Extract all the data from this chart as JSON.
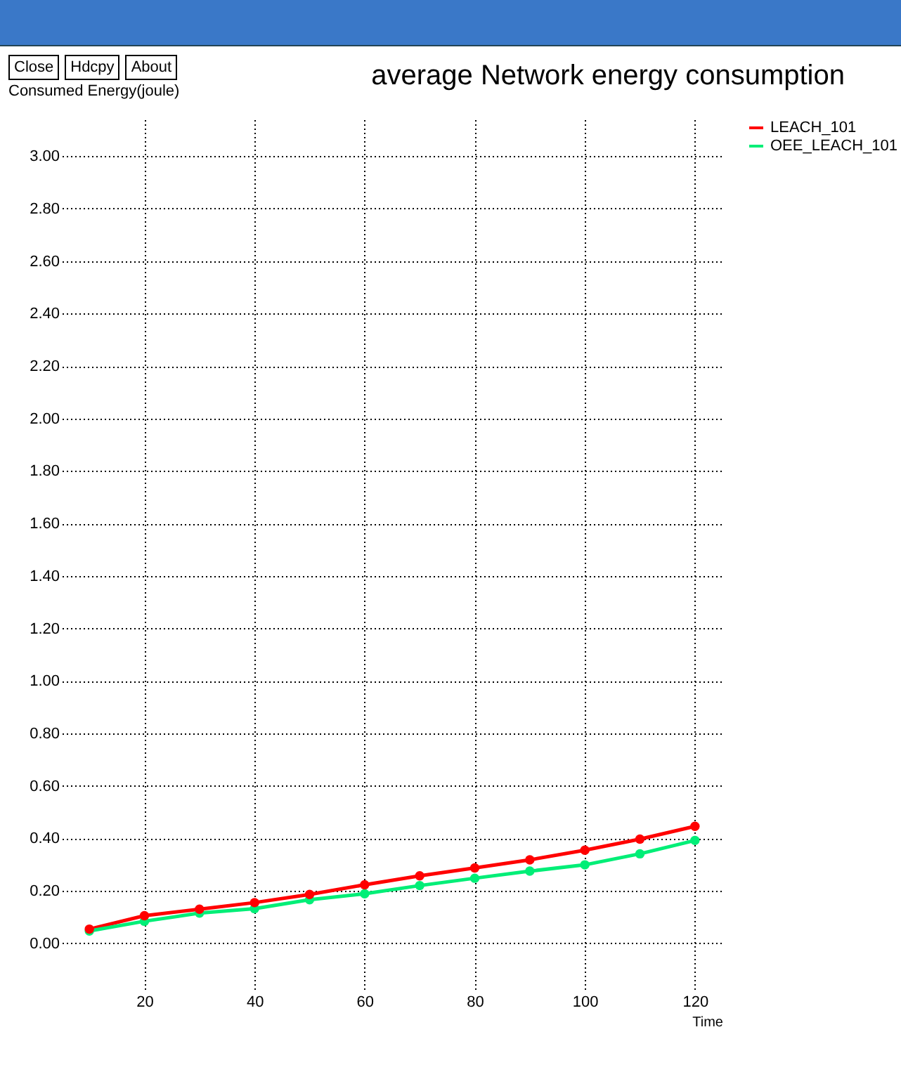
{
  "chart_data": {
    "type": "line",
    "title": "average Network energy consumption",
    "xlabel": "Time",
    "ylabel": "Consumed Energy(joule)",
    "annotations": [
      "Close",
      "Hdcpy",
      "About"
    ],
    "x": [
      10,
      20,
      30,
      40,
      50,
      60,
      70,
      80,
      90,
      100,
      110,
      120
    ],
    "series": [
      {
        "name": "LEACH_101",
        "color": "#ff0000",
        "values": [
          0.054,
          0.105,
          0.13,
          0.155,
          0.186,
          0.223,
          0.257,
          0.287,
          0.318,
          0.355,
          0.397,
          0.446
        ]
      },
      {
        "name": "OEE_LEACH_101",
        "color": "#00ee77",
        "values": [
          0.047,
          0.084,
          0.115,
          0.132,
          0.166,
          0.189,
          0.22,
          0.248,
          0.275,
          0.299,
          0.341,
          0.392
        ]
      }
    ],
    "xlim": [
      5,
      125
    ],
    "xticks": [
      20,
      40,
      60,
      80,
      100,
      120
    ],
    "ylim": [
      -0.18,
      3.14
    ],
    "yticks": [
      {
        "value": 0,
        "label": "0.00"
      },
      {
        "value": 0.2,
        "label": "0.20"
      },
      {
        "value": 0.4,
        "label": "0.40"
      },
      {
        "value": 0.6,
        "label": "0.60"
      },
      {
        "value": 0.8,
        "label": "0.80"
      },
      {
        "value": 1.0,
        "label": "1.00"
      },
      {
        "value": 1.2,
        "label": "1.20"
      },
      {
        "value": 1.4,
        "label": "1.40"
      },
      {
        "value": 1.6,
        "label": "1.60"
      },
      {
        "value": 1.8,
        "label": "1.80"
      },
      {
        "value": 2.0,
        "label": "2.00"
      },
      {
        "value": 2.2,
        "label": "2.20"
      },
      {
        "value": 2.4,
        "label": "2.40"
      },
      {
        "value": 2.6,
        "label": "2.60"
      },
      {
        "value": 2.8,
        "label": "2.80"
      },
      {
        "value": 3.0,
        "label": "3.00"
      }
    ],
    "grid": true,
    "legend": "right",
    "marker": "circle",
    "line_style": "solid"
  }
}
